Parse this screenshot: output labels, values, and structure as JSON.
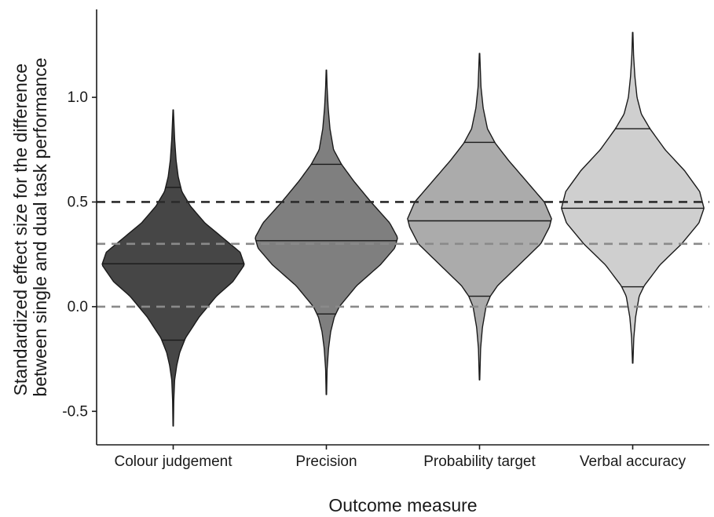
{
  "chart_data": {
    "type": "violin",
    "xlabel": "Outcome measure",
    "ylabel_lines": [
      "Standardized effect size for the difference",
      "between single and dual task performance"
    ],
    "ylim": [
      -0.66,
      1.42
    ],
    "yticks": [
      -0.5,
      0.0,
      0.5,
      1.0
    ],
    "ytick_labels": [
      "-0.5",
      "0.0",
      "0.5",
      "1.0"
    ],
    "grid": false,
    "reference_lines": [
      {
        "y": 0.5,
        "color": "#2b2b2b"
      },
      {
        "y": 0.3,
        "color": "#8a8a8a"
      },
      {
        "y": 0.0,
        "color": "#8a8a8a"
      }
    ],
    "categories": [
      "Colour judgement",
      "Precision",
      "Probability target",
      "Verbal accuracy"
    ],
    "series": [
      {
        "category": "Colour judgement",
        "fill": "#464646",
        "min": -0.57,
        "max": 0.94,
        "quantiles": [
          -0.16,
          0.205,
          0.57
        ],
        "profile": [
          [
            -0.57,
            0.003
          ],
          [
            -0.45,
            0.008
          ],
          [
            -0.35,
            0.02
          ],
          [
            -0.28,
            0.05
          ],
          [
            -0.22,
            0.09
          ],
          [
            -0.15,
            0.17
          ],
          [
            -0.05,
            0.36
          ],
          [
            0.05,
            0.6
          ],
          [
            0.12,
            0.83
          ],
          [
            0.2,
            0.99
          ],
          [
            0.26,
            0.93
          ],
          [
            0.32,
            0.72
          ],
          [
            0.4,
            0.44
          ],
          [
            0.48,
            0.24
          ],
          [
            0.55,
            0.12
          ],
          [
            0.62,
            0.07
          ],
          [
            0.7,
            0.04
          ],
          [
            0.8,
            0.02
          ],
          [
            0.94,
            0.003
          ]
        ]
      },
      {
        "category": "Precision",
        "fill": "#7f7f7f",
        "min": -0.42,
        "max": 1.13,
        "quantiles": [
          -0.035,
          0.315,
          0.68
        ],
        "profile": [
          [
            -0.42,
            0.003
          ],
          [
            -0.3,
            0.01
          ],
          [
            -0.2,
            0.03
          ],
          [
            -0.12,
            0.06
          ],
          [
            -0.05,
            0.11
          ],
          [
            0.0,
            0.18
          ],
          [
            0.1,
            0.42
          ],
          [
            0.2,
            0.75
          ],
          [
            0.28,
            0.95
          ],
          [
            0.33,
            0.99
          ],
          [
            0.4,
            0.88
          ],
          [
            0.5,
            0.62
          ],
          [
            0.6,
            0.38
          ],
          [
            0.68,
            0.21
          ],
          [
            0.75,
            0.1
          ],
          [
            0.85,
            0.05
          ],
          [
            0.95,
            0.025
          ],
          [
            1.05,
            0.01
          ],
          [
            1.13,
            0.003
          ]
        ]
      },
      {
        "category": "Probability target",
        "fill": "#ababab",
        "min": -0.35,
        "max": 1.21,
        "quantiles": [
          0.05,
          0.41,
          0.785
        ],
        "profile": [
          [
            -0.35,
            0.003
          ],
          [
            -0.2,
            0.015
          ],
          [
            -0.1,
            0.04
          ],
          [
            0.0,
            0.09
          ],
          [
            0.05,
            0.15
          ],
          [
            0.1,
            0.25
          ],
          [
            0.2,
            0.55
          ],
          [
            0.3,
            0.85
          ],
          [
            0.38,
            0.97
          ],
          [
            0.42,
            1.0
          ],
          [
            0.5,
            0.9
          ],
          [
            0.6,
            0.65
          ],
          [
            0.7,
            0.4
          ],
          [
            0.78,
            0.22
          ],
          [
            0.85,
            0.11
          ],
          [
            0.95,
            0.05
          ],
          [
            1.05,
            0.02
          ],
          [
            1.21,
            0.003
          ]
        ]
      },
      {
        "category": "Verbal accuracy",
        "fill": "#cfcfcf",
        "min": -0.27,
        "max": 1.31,
        "quantiles": [
          0.095,
          0.47,
          0.85
        ],
        "profile": [
          [
            -0.27,
            0.003
          ],
          [
            -0.15,
            0.015
          ],
          [
            -0.05,
            0.04
          ],
          [
            0.05,
            0.09
          ],
          [
            0.1,
            0.16
          ],
          [
            0.2,
            0.38
          ],
          [
            0.3,
            0.68
          ],
          [
            0.4,
            0.92
          ],
          [
            0.47,
            0.99
          ],
          [
            0.55,
            0.93
          ],
          [
            0.65,
            0.72
          ],
          [
            0.75,
            0.45
          ],
          [
            0.85,
            0.24
          ],
          [
            0.92,
            0.12
          ],
          [
            1.0,
            0.06
          ],
          [
            1.1,
            0.03
          ],
          [
            1.2,
            0.012
          ],
          [
            1.31,
            0.003
          ]
        ]
      }
    ]
  }
}
